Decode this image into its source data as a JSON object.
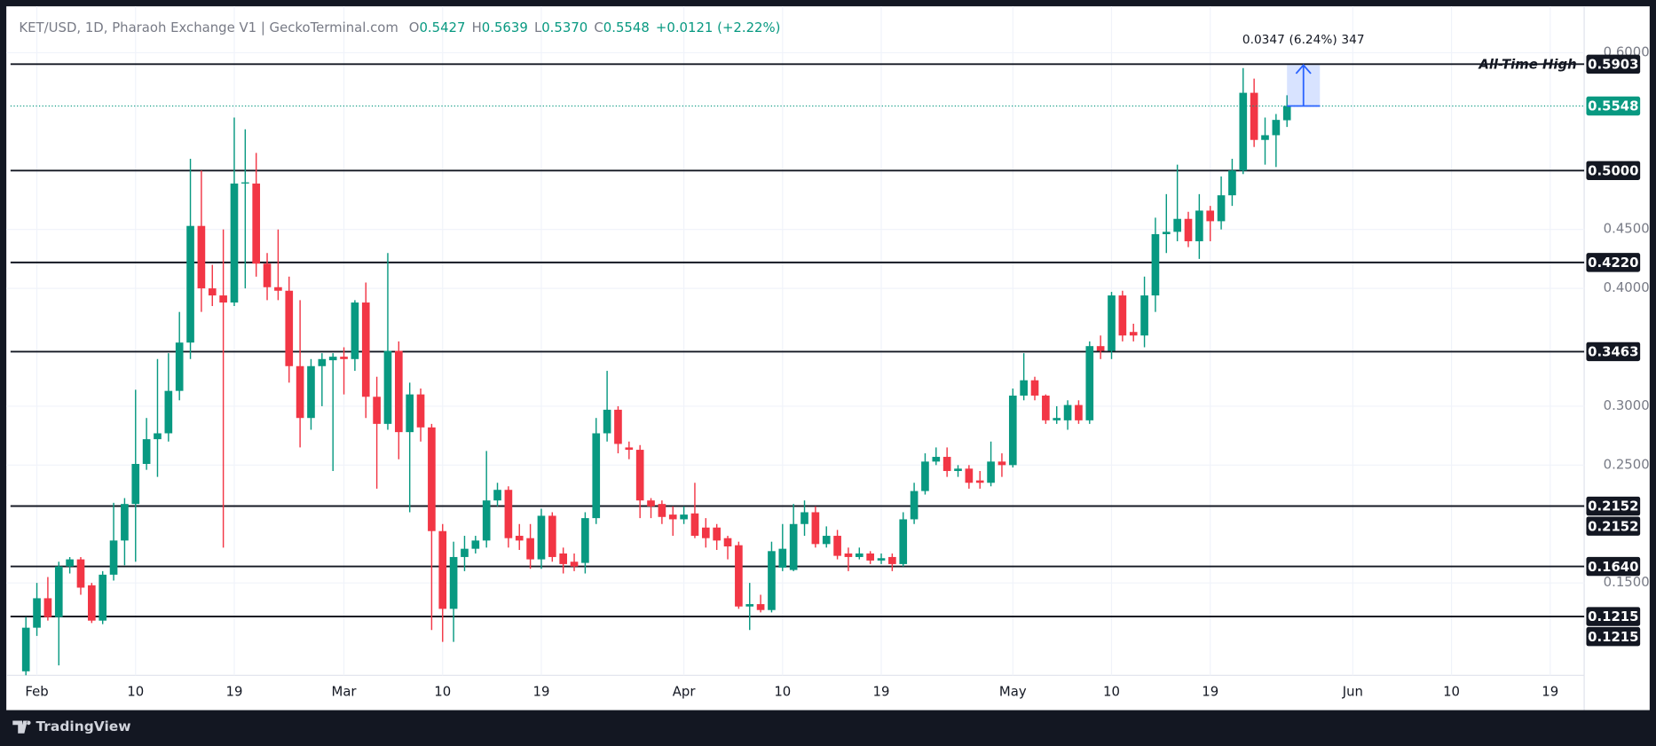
{
  "chart_data": {
    "type": "candlestick",
    "title": "KET/USD, 1D, Pharaoh Exchange V1 | GeckoTerminal.com",
    "header": {
      "labels": [
        "O",
        "H",
        "L",
        "C"
      ],
      "values": [
        {
          "value": 0.5427,
          "label": "0.5427"
        },
        {
          "value": 0.5639,
          "label": "0.5639"
        },
        {
          "value": 0.537,
          "label": "0.5370"
        },
        {
          "value": 0.5548,
          "label": "0.5548"
        }
      ],
      "change": {
        "value": 0.0121,
        "label": "+0.0121"
      },
      "change_pct": {
        "value": 2.22,
        "label": "(+2.22%)"
      }
    },
    "up_color": "#089981",
    "down_color": "#f23645",
    "grid": true,
    "x": [
      31,
      32,
      33,
      34,
      35,
      36,
      37,
      38,
      39,
      40,
      41,
      42,
      43,
      44,
      45,
      46,
      47,
      48,
      49,
      50,
      51,
      52,
      53,
      54,
      55,
      56,
      57,
      58,
      59,
      60,
      61,
      62,
      63,
      64,
      65,
      66,
      67,
      68,
      69,
      70,
      71,
      72,
      73,
      74,
      75,
      76,
      77,
      78,
      79,
      80,
      81,
      82,
      83,
      84,
      85,
      86,
      87,
      88,
      89,
      90,
      91,
      92,
      93,
      94,
      95,
      96,
      97,
      98,
      99,
      100,
      101,
      102,
      103,
      104,
      105,
      106,
      107,
      108,
      109,
      110,
      111,
      112,
      113,
      114,
      115,
      116,
      117,
      118,
      119,
      120,
      121,
      122,
      123,
      124,
      125,
      126,
      127,
      128,
      129,
      130,
      131,
      132,
      133,
      134,
      135,
      136,
      137,
      138,
      139,
      140,
      141,
      142,
      143,
      144,
      145,
      146
    ],
    "open": [
      0.075,
      0.112,
      0.137,
      0.121,
      0.164,
      0.17,
      0.148,
      0.118,
      0.157,
      0.186,
      0.217,
      0.251,
      0.272,
      0.277,
      0.313,
      0.354,
      0.453,
      0.4,
      0.394,
      0.388,
      0.489,
      0.489,
      0.421,
      0.401,
      0.398,
      0.334,
      0.29,
      0.334,
      0.339,
      0.342,
      0.34,
      0.388,
      0.308,
      0.285,
      0.347,
      0.278,
      0.31,
      0.282,
      0.194,
      0.128,
      0.172,
      0.179,
      0.186,
      0.22,
      0.229,
      0.19,
      0.188,
      0.17,
      0.207,
      0.175,
      0.168,
      0.167,
      0.205,
      0.277,
      0.297,
      0.265,
      0.263,
      0.22,
      0.217,
      0.208,
      0.204,
      0.209,
      0.197,
      0.197,
      0.188,
      0.182,
      0.13,
      0.132,
      0.127,
      0.163,
      0.161,
      0.2,
      0.21,
      0.183,
      0.19,
      0.175,
      0.172,
      0.175,
      0.169,
      0.172,
      0.166,
      0.204,
      0.228,
      0.253,
      0.257,
      0.245,
      0.247,
      0.237,
      0.235,
      0.253,
      0.25,
      0.309,
      0.322,
      0.309,
      0.288,
      0.288,
      0.301,
      0.288,
      0.351,
      0.347,
      0.394,
      0.363,
      0.36,
      0.394,
      0.446,
      0.448,
      0.459,
      0.44,
      0.466,
      0.457,
      0.479,
      0.5,
      0.566,
      0.526,
      0.53,
      0.5427
    ],
    "high": [
      0.121,
      0.15,
      0.155,
      0.168,
      0.172,
      0.172,
      0.15,
      0.16,
      0.218,
      0.222,
      0.314,
      0.29,
      0.34,
      0.345,
      0.38,
      0.51,
      0.5,
      0.42,
      0.45,
      0.545,
      0.535,
      0.515,
      0.43,
      0.45,
      0.41,
      0.39,
      0.34,
      0.345,
      0.345,
      0.35,
      0.39,
      0.405,
      0.325,
      0.43,
      0.355,
      0.32,
      0.315,
      0.285,
      0.2,
      0.185,
      0.19,
      0.19,
      0.262,
      0.235,
      0.232,
      0.2,
      0.2,
      0.213,
      0.21,
      0.18,
      0.175,
      0.21,
      0.29,
      0.33,
      0.3,
      0.27,
      0.267,
      0.222,
      0.22,
      0.215,
      0.215,
      0.235,
      0.205,
      0.2,
      0.19,
      0.185,
      0.15,
      0.14,
      0.185,
      0.2,
      0.217,
      0.22,
      0.215,
      0.198,
      0.195,
      0.18,
      0.18,
      0.177,
      0.175,
      0.175,
      0.21,
      0.235,
      0.26,
      0.265,
      0.265,
      0.25,
      0.25,
      0.245,
      0.27,
      0.26,
      0.315,
      0.345,
      0.325,
      0.31,
      0.3,
      0.305,
      0.305,
      0.355,
      0.36,
      0.397,
      0.398,
      0.37,
      0.41,
      0.46,
      0.48,
      0.505,
      0.465,
      0.48,
      0.47,
      0.495,
      0.51,
      0.587,
      0.578,
      0.545,
      0.548,
      0.5639
    ],
    "low": [
      0.07,
      0.105,
      0.118,
      0.08,
      0.158,
      0.14,
      0.116,
      0.115,
      0.152,
      0.165,
      0.168,
      0.246,
      0.24,
      0.27,
      0.305,
      0.34,
      0.38,
      0.385,
      0.18,
      0.385,
      0.4,
      0.41,
      0.39,
      0.39,
      0.32,
      0.265,
      0.28,
      0.3,
      0.245,
      0.31,
      0.33,
      0.29,
      0.23,
      0.28,
      0.255,
      0.21,
      0.27,
      0.11,
      0.1,
      0.1,
      0.16,
      0.175,
      0.18,
      0.215,
      0.18,
      0.178,
      0.162,
      0.162,
      0.168,
      0.158,
      0.16,
      0.158,
      0.2,
      0.27,
      0.26,
      0.255,
      0.205,
      0.205,
      0.2,
      0.19,
      0.2,
      0.188,
      0.18,
      0.178,
      0.17,
      0.128,
      0.11,
      0.125,
      0.125,
      0.16,
      0.16,
      0.19,
      0.18,
      0.18,
      0.17,
      0.16,
      0.17,
      0.166,
      0.166,
      0.16,
      0.164,
      0.2,
      0.225,
      0.25,
      0.24,
      0.24,
      0.23,
      0.23,
      0.232,
      0.24,
      0.248,
      0.305,
      0.305,
      0.285,
      0.285,
      0.28,
      0.285,
      0.285,
      0.34,
      0.34,
      0.355,
      0.355,
      0.35,
      0.38,
      0.43,
      0.44,
      0.435,
      0.425,
      0.44,
      0.45,
      0.47,
      0.497,
      0.52,
      0.505,
      0.503,
      0.537
    ],
    "close": [
      0.112,
      0.137,
      0.121,
      0.164,
      0.17,
      0.146,
      0.118,
      0.157,
      0.186,
      0.217,
      0.251,
      0.272,
      0.277,
      0.313,
      0.354,
      0.453,
      0.4,
      0.394,
      0.388,
      0.489,
      0.49,
      0.421,
      0.401,
      0.398,
      0.334,
      0.29,
      0.334,
      0.34,
      0.342,
      0.34,
      0.388,
      0.308,
      0.285,
      0.347,
      0.278,
      0.31,
      0.282,
      0.194,
      0.128,
      0.172,
      0.179,
      0.186,
      0.22,
      0.229,
      0.188,
      0.186,
      0.17,
      0.207,
      0.172,
      0.166,
      0.164,
      0.205,
      0.277,
      0.297,
      0.268,
      0.263,
      0.22,
      0.215,
      0.206,
      0.204,
      0.208,
      0.19,
      0.188,
      0.186,
      0.181,
      0.13,
      0.132,
      0.127,
      0.177,
      0.179,
      0.2,
      0.21,
      0.183,
      0.19,
      0.173,
      0.172,
      0.175,
      0.169,
      0.171,
      0.166,
      0.204,
      0.228,
      0.253,
      0.257,
      0.245,
      0.247,
      0.235,
      0.235,
      0.253,
      0.25,
      0.309,
      0.322,
      0.309,
      0.288,
      0.29,
      0.301,
      0.288,
      0.351,
      0.347,
      0.394,
      0.36,
      0.36,
      0.394,
      0.446,
      0.448,
      0.459,
      0.44,
      0.466,
      0.457,
      0.479,
      0.5,
      0.566,
      0.526,
      0.53,
      0.543,
      0.5548
    ],
    "xlim": [
      29.6,
      173.1
    ],
    "ylim": [
      0.0716,
      0.6358
    ],
    "xticks": [
      {
        "value": 32,
        "label": "Feb"
      },
      {
        "value": 41,
        "label": "10"
      },
      {
        "value": 50,
        "label": "19"
      },
      {
        "value": 60,
        "label": "Mar"
      },
      {
        "value": 69,
        "label": "10"
      },
      {
        "value": 78,
        "label": "19"
      },
      {
        "value": 91,
        "label": "Apr"
      },
      {
        "value": 100,
        "label": "10"
      },
      {
        "value": 109,
        "label": "19"
      },
      {
        "value": 121,
        "label": "May"
      },
      {
        "value": 130,
        "label": "10"
      },
      {
        "value": 139,
        "label": "19"
      },
      {
        "value": 152,
        "label": "Jun"
      },
      {
        "value": 161,
        "label": "10"
      },
      {
        "value": 170,
        "label": "19"
      }
    ],
    "yticks": [
      {
        "value": 0.6,
        "label": "0.6000"
      },
      {
        "value": 0.45,
        "label": "0.4500"
      },
      {
        "value": 0.4,
        "label": "0.4000"
      },
      {
        "value": 0.3,
        "label": "0.3000"
      },
      {
        "value": 0.25,
        "label": "0.2500"
      },
      {
        "value": 0.15,
        "label": "0.1500"
      }
    ],
    "levels": [
      {
        "value": 0.5903,
        "label": "0.5903"
      },
      {
        "value": 0.5,
        "label": "0.5000"
      },
      {
        "value": 0.422,
        "label": "0.4220"
      },
      {
        "value": 0.3463,
        "label": "0.3463"
      },
      {
        "value": 0.2152,
        "label": "0.2152"
      },
      {
        "value": 0.2152,
        "label": "0.2152"
      },
      {
        "value": 0.164,
        "label": "0.1640"
      },
      {
        "value": 0.1215,
        "label": "0.1215"
      },
      {
        "value": 0.1215,
        "label": "0.1215"
      }
    ],
    "level_annotation": "All-Time High",
    "last_price": {
      "value": 0.5548,
      "label": "0.5548"
    },
    "measure": {
      "change": {
        "value": 0.0347,
        "label": "0.0347"
      },
      "percent": {
        "value": 6.24,
        "label": "(6.24%)"
      },
      "bars": 347
    }
  },
  "footer": {
    "brand": "TradingView"
  }
}
